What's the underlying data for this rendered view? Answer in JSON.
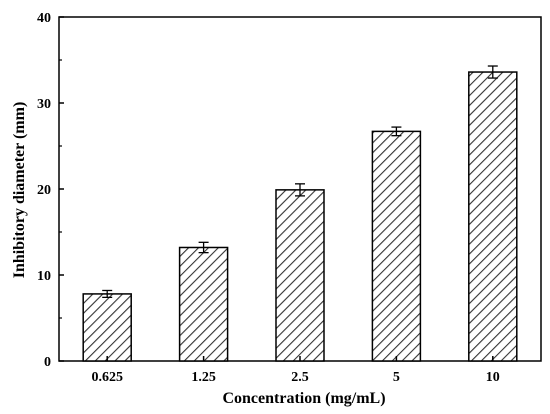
{
  "chart_data": {
    "type": "bar",
    "categories": [
      "0.625",
      "1.25",
      "2.5",
      "5",
      "10"
    ],
    "values": [
      7.8,
      13.2,
      19.9,
      26.7,
      33.6
    ],
    "errors": [
      0.4,
      0.6,
      0.7,
      0.5,
      0.7
    ],
    "xlabel": "Concentration (mg/mL)",
    "ylabel": "Inhibitory diameter (mm)",
    "ylim": [
      0,
      40
    ],
    "yticks": [
      0,
      10,
      20,
      30,
      40
    ],
    "bar_fill": "hatched diagonal lines",
    "bar_color": "#ffffff",
    "hatch_color": "#333333",
    "axis_color": "#000000",
    "grid": false,
    "legend": "none"
  }
}
